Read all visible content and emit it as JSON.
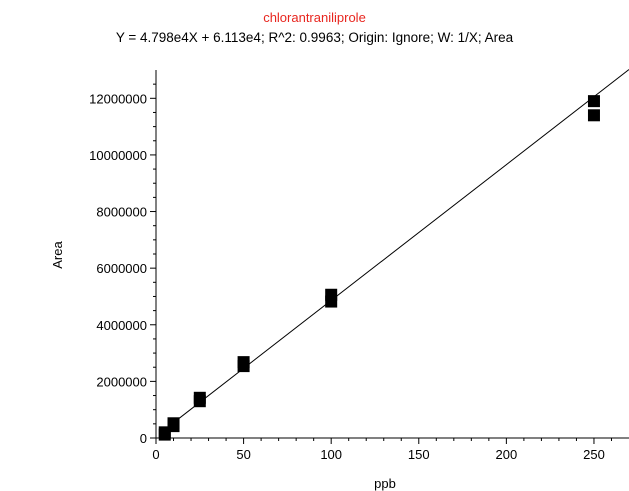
{
  "chart_data": {
    "type": "scatter",
    "title": "chlorantraniliprole",
    "subtitle": "Y = 4.798e4X + 6.113e4; R^2: 0.9963; Origin: Ignore; W: 1/X; Area",
    "xlabel": "ppb",
    "ylabel": "Area",
    "xlim": [
      0,
      270
    ],
    "ylim": [
      0,
      13000000
    ],
    "x_ticks": [
      0,
      50,
      100,
      150,
      200,
      250
    ],
    "y_ticks": [
      0,
      2000000,
      4000000,
      6000000,
      8000000,
      10000000,
      12000000
    ],
    "x_tick_labels": [
      "0",
      "50",
      "100",
      "150",
      "200",
      "250"
    ],
    "y_tick_labels": [
      "0",
      "2000000",
      "4000000",
      "6000000",
      "8000000",
      "10000000",
      "12000000"
    ],
    "grid": false,
    "series": [
      {
        "x": [
          5,
          5,
          10,
          10,
          25,
          25,
          50,
          50,
          100,
          100,
          250,
          250
        ],
        "y": [
          120000,
          200000,
          420000,
          520000,
          1300000,
          1420000,
          2540000,
          2680000,
          4820000,
          5060000,
          11400000,
          11900000
        ],
        "color": "#000000"
      }
    ],
    "fit_line": {
      "slope": 47980,
      "intercept": 61130,
      "color": "#000000"
    },
    "colors": {
      "title": "#e8261f",
      "text": "#000000"
    }
  }
}
